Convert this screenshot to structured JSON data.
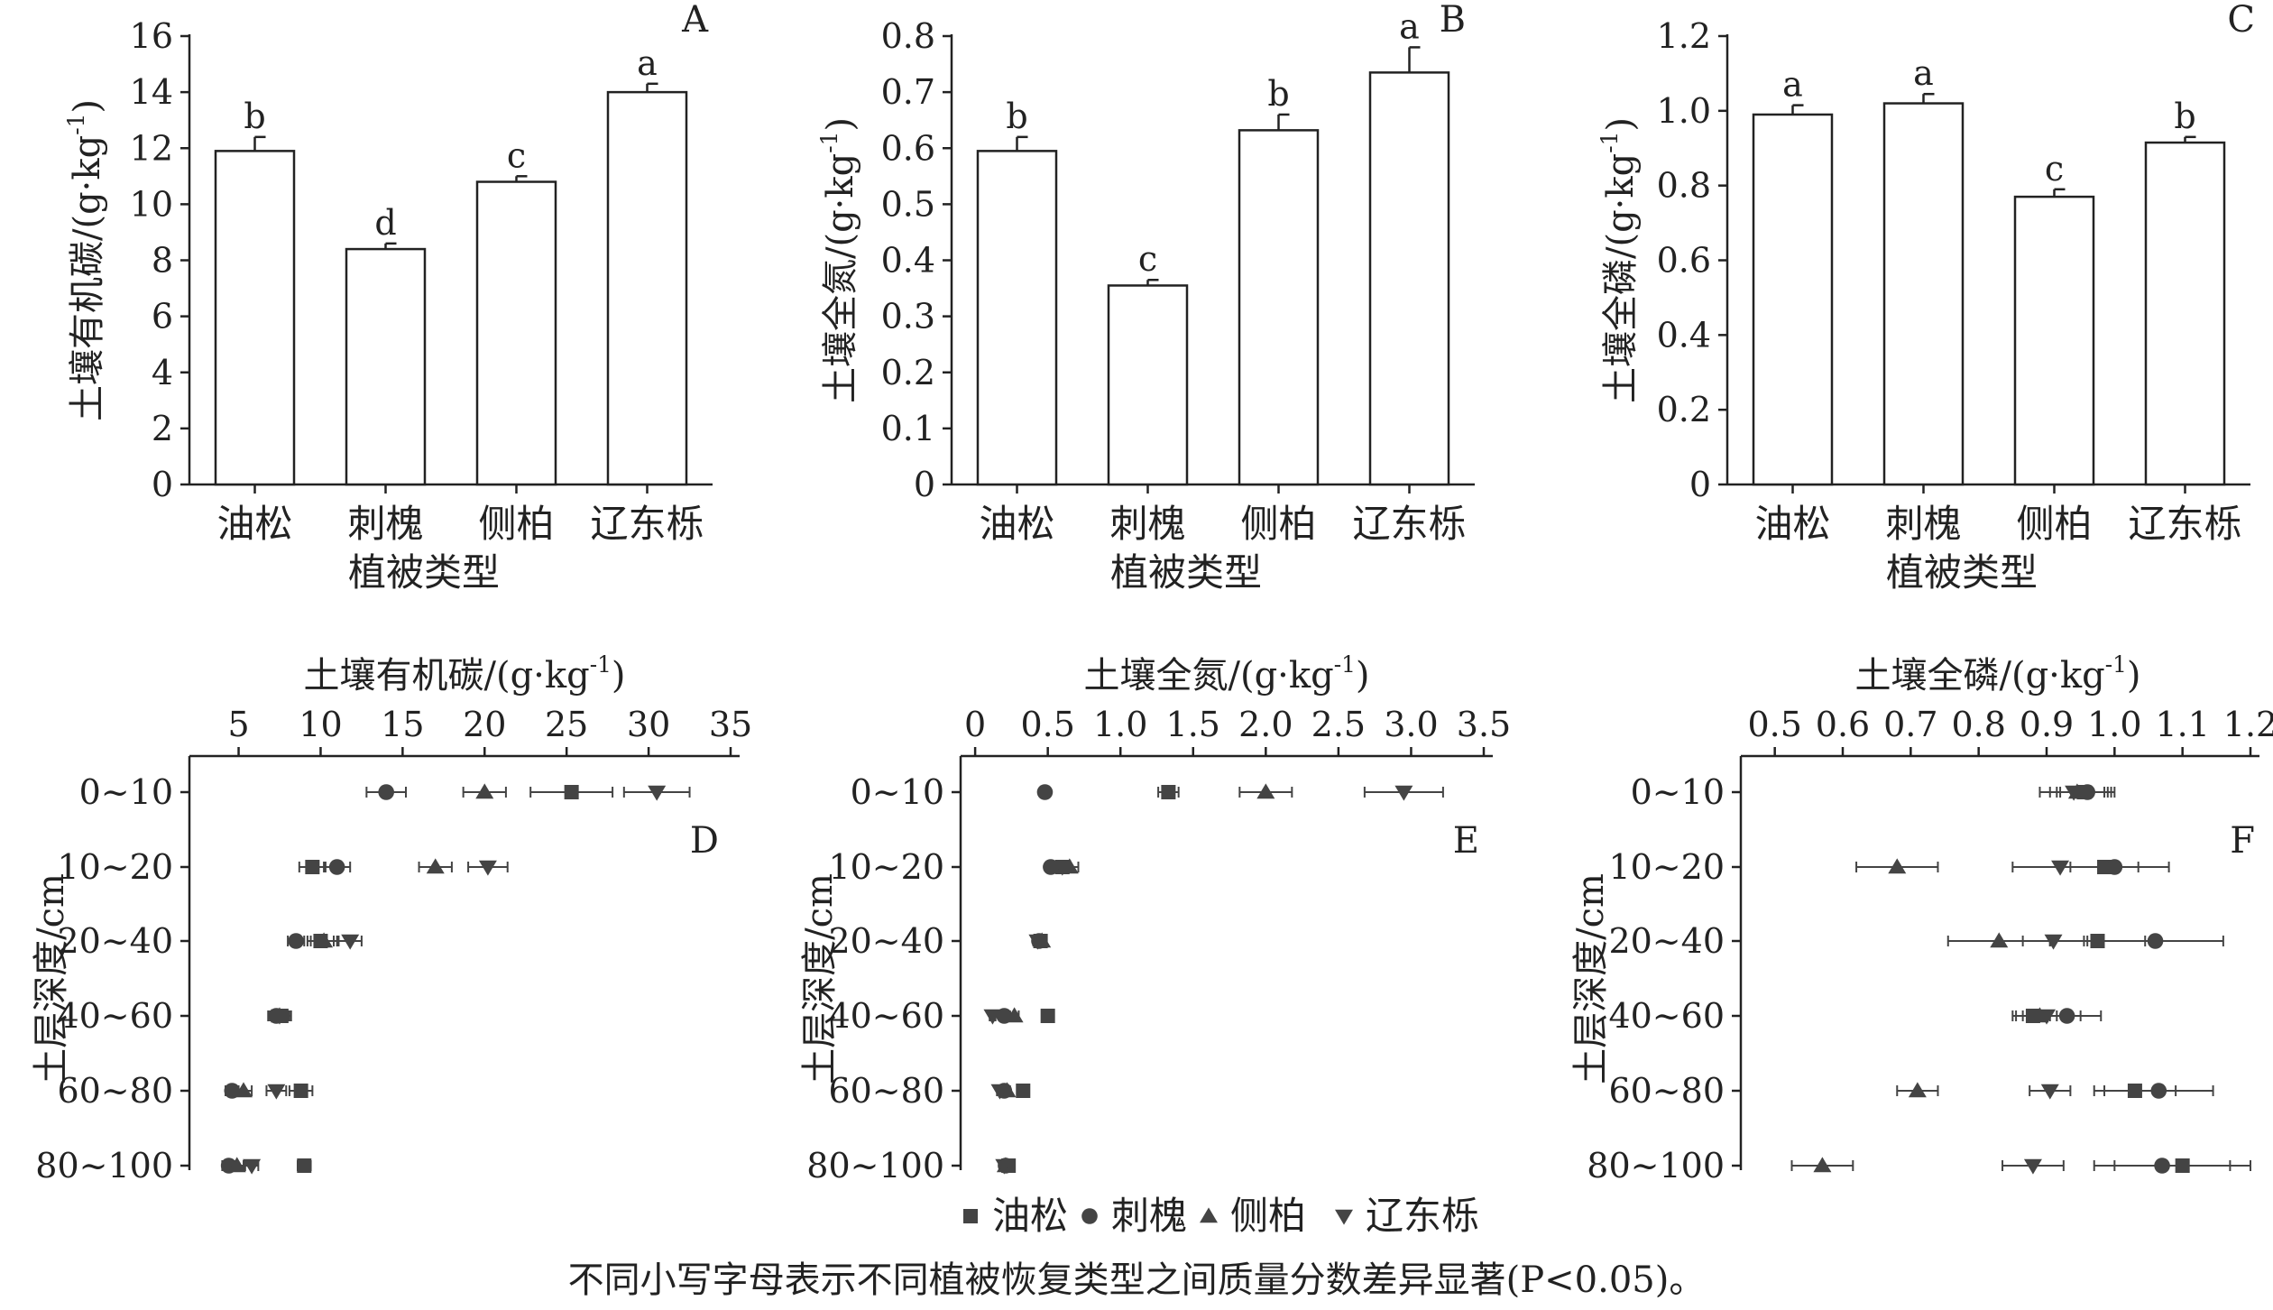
{
  "footnote": "不同小写字母表示不同植被恢复类型之间质量分数差异显著(P<0.05)。",
  "legend": [
    {
      "label": "油松",
      "marker": "square"
    },
    {
      "label": "刺槐",
      "marker": "circle"
    },
    {
      "label": "侧柏",
      "marker": "triangle-up"
    },
    {
      "label": "辽东栎",
      "marker": "triangle-down"
    }
  ],
  "chart_data": [
    {
      "panel": "A",
      "type": "bar",
      "ylabel": "土壤有机碳/(g·kg⁻¹)",
      "xlabel": "植被类型",
      "categories": [
        "油松",
        "刺槐",
        "侧柏",
        "辽东栎"
      ],
      "values": [
        11.9,
        8.4,
        10.8,
        14.0
      ],
      "errors": [
        0.5,
        0.2,
        0.2,
        0.3
      ],
      "letters": [
        "b",
        "d",
        "c",
        "a"
      ],
      "ylim": [
        0,
        16
      ],
      "yticks": [
        "0",
        "2",
        "4",
        "6",
        "8",
        "10",
        "12",
        "14",
        "16"
      ]
    },
    {
      "panel": "B",
      "type": "bar",
      "ylabel": "土壤全氮/(g·kg⁻¹)",
      "xlabel": "植被类型",
      "categories": [
        "油松",
        "刺槐",
        "侧柏",
        "辽东栎"
      ],
      "values": [
        0.595,
        0.355,
        0.632,
        0.735
      ],
      "errors": [
        0.025,
        0.01,
        0.028,
        0.045
      ],
      "letters": [
        "b",
        "c",
        "b",
        "a"
      ],
      "ylim": [
        0,
        0.8
      ],
      "yticks": [
        "0",
        "0.1",
        "0.2",
        "0.3",
        "0.4",
        "0.5",
        "0.6",
        "0.7",
        "0.8"
      ]
    },
    {
      "panel": "C",
      "type": "bar",
      "ylabel": "土壤全磷/(g·kg⁻¹)",
      "xlabel": "植被类型",
      "categories": [
        "油松",
        "刺槐",
        "侧柏",
        "辽东栎"
      ],
      "values": [
        0.99,
        1.02,
        0.77,
        0.915
      ],
      "errors": [
        0.025,
        0.025,
        0.02,
        0.015
      ],
      "letters": [
        "a",
        "a",
        "c",
        "b"
      ],
      "ylim": [
        0,
        1.2
      ],
      "yticks": [
        "0",
        "0.2",
        "0.4",
        "0.6",
        "0.8",
        "1.0",
        "1.2"
      ]
    },
    {
      "panel": "D",
      "type": "scatter",
      "xlabel": "土壤有机碳/(g·kg⁻¹)",
      "ylabel": "土层深度/cm",
      "depths": [
        "0~10",
        "10~20",
        "20~40",
        "40~60",
        "60~80",
        "80~100"
      ],
      "xlim": [
        2,
        35
      ],
      "xticks": [
        5,
        10,
        15,
        20,
        25,
        30,
        35
      ],
      "series": [
        {
          "name": "油松",
          "marker": "square",
          "values": [
            25.3,
            9.5,
            10.0,
            7.6,
            8.8,
            9.0
          ],
          "errors": [
            2.5,
            0.8,
            0.8,
            0.6,
            0.7,
            0.4
          ]
        },
        {
          "name": "刺槐",
          "marker": "circle",
          "values": [
            14.0,
            11.0,
            8.5,
            7.3,
            4.6,
            4.4
          ],
          "errors": [
            1.2,
            0.8,
            0.5,
            0.5,
            0.4,
            0.4
          ]
        },
        {
          "name": "侧柏",
          "marker": "triangle-up",
          "values": [
            20.0,
            17.0,
            10.2,
            7.5,
            5.3,
            4.9
          ],
          "errors": [
            1.3,
            1.0,
            0.8,
            0.5,
            0.5,
            0.4
          ]
        },
        {
          "name": "辽东栎",
          "marker": "triangle-down",
          "values": [
            30.5,
            20.2,
            11.8,
            7.5,
            7.3,
            5.8
          ],
          "errors": [
            2.0,
            1.2,
            0.7,
            0.6,
            0.6,
            0.4
          ]
        }
      ]
    },
    {
      "panel": "E",
      "type": "scatter",
      "xlabel": "土壤全氮/(g·kg⁻¹)",
      "ylabel": "土层深度/cm",
      "depths": [
        "0~10",
        "10~20",
        "20~40",
        "40~60",
        "60~80",
        "80~100"
      ],
      "xlim": [
        -0.1,
        3.5
      ],
      "xticks": [
        "0",
        "0.5",
        "1.0",
        "1.5",
        "2.0",
        "2.5",
        "3.0",
        "3.5"
      ],
      "series": [
        {
          "name": "油松",
          "marker": "square",
          "values": [
            1.33,
            0.6,
            0.45,
            0.5,
            0.33,
            0.23
          ],
          "errors": [
            0.07,
            0.04,
            0.03,
            0.02,
            0.03,
            0.02
          ]
        },
        {
          "name": "刺槐",
          "marker": "circle",
          "values": [
            0.48,
            0.52,
            0.44,
            0.2,
            0.2,
            0.21
          ],
          "errors": [
            0.02,
            0.03,
            0.03,
            0.02,
            0.02,
            0.02
          ]
        },
        {
          "name": "侧柏",
          "marker": "triangle-up",
          "values": [
            2.0,
            0.65,
            0.46,
            0.27,
            0.22,
            0.21
          ],
          "errors": [
            0.18,
            0.06,
            0.03,
            0.03,
            0.02,
            0.02
          ]
        },
        {
          "name": "辽东栎",
          "marker": "triangle-down",
          "values": [
            2.95,
            0.6,
            0.43,
            0.12,
            0.17,
            0.2
          ],
          "errors": [
            0.27,
            0.05,
            0.03,
            0.02,
            0.02,
            0.02
          ]
        }
      ]
    },
    {
      "panel": "F",
      "type": "scatter",
      "xlabel": "土壤全磷/(g·kg⁻¹)",
      "ylabel": "土层深度/cm",
      "depths": [
        "0~10",
        "10~20",
        "20~40",
        "40~60",
        "60~80",
        "80~100"
      ],
      "xlim": [
        0.45,
        1.2
      ],
      "xticks": [
        "0.5",
        "0.6",
        "0.7",
        "0.8",
        "0.9",
        "1.0",
        "1.1",
        "1.2"
      ],
      "series": [
        {
          "name": "油松",
          "marker": "square",
          "values": [
            0.955,
            0.985,
            0.975,
            0.88,
            1.03,
            1.1
          ],
          "errors": [
            0.04,
            0.05,
            0.07,
            0.025,
            0.06,
            0.1
          ]
        },
        {
          "name": "刺槐",
          "marker": "circle",
          "values": [
            0.96,
            1.0,
            1.06,
            0.93,
            1.065,
            1.07
          ],
          "errors": [
            0.04,
            0.08,
            0.1,
            0.05,
            0.08,
            0.1
          ]
        },
        {
          "name": "侧柏",
          "marker": "triangle-up",
          "values": [
            0.945,
            0.68,
            0.83,
            0.89,
            0.71,
            0.57
          ],
          "errors": [
            0.04,
            0.06,
            0.075,
            0.025,
            0.03,
            0.045
          ]
        },
        {
          "name": "辽东栎",
          "marker": "triangle-down",
          "values": [
            0.94,
            0.92,
            0.91,
            0.9,
            0.905,
            0.88
          ],
          "errors": [
            0.05,
            0.07,
            0.045,
            0.05,
            0.03,
            0.045
          ]
        }
      ]
    }
  ]
}
